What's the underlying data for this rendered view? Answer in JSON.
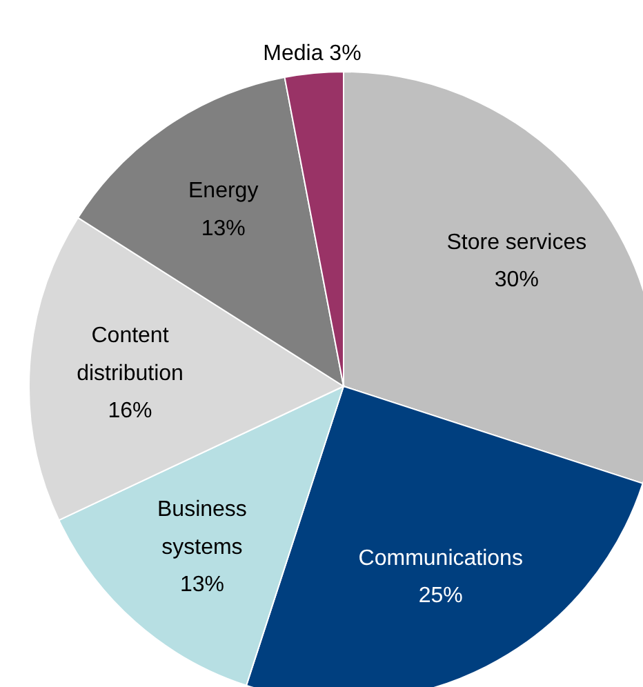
{
  "chart_data": {
    "type": "pie",
    "categories": [
      "Store services",
      "Communications",
      "Business systems",
      "Content distribution",
      "Energy",
      "Media"
    ],
    "values": [
      30,
      25,
      13,
      16,
      13,
      3
    ],
    "value_labels": [
      "30%",
      "25%",
      "13%",
      "16%",
      "13%",
      "3%"
    ],
    "colors": [
      "#bfbfbf",
      "#003f7f",
      "#b7dfe3",
      "#d9d9d9",
      "#808080",
      "#993366"
    ],
    "legend": false
  }
}
